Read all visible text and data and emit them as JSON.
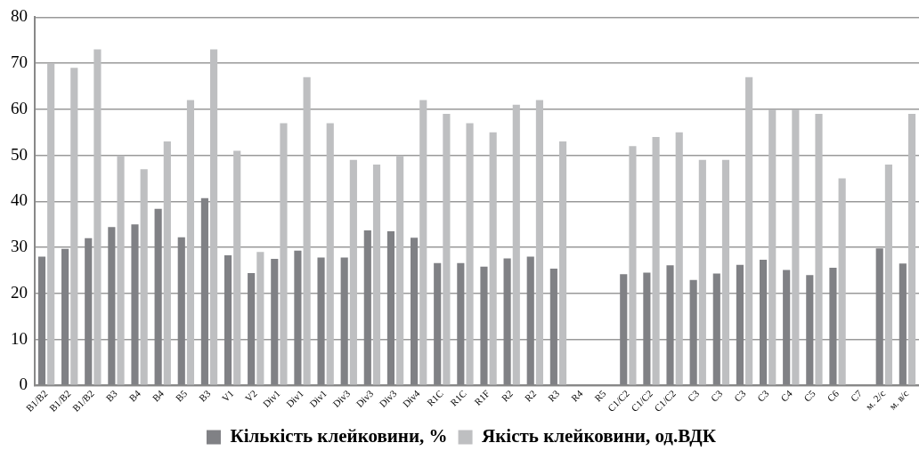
{
  "chart_data": {
    "type": "bar",
    "categories": [
      "B1/B2",
      "B1/B2",
      "B1/B2",
      "B3",
      "B4",
      "B4",
      "B5",
      "B3",
      "V1",
      "V2",
      "Div1",
      "Div1",
      "Div1",
      "Div3",
      "Div3",
      "Div3",
      "Div4",
      "R1C",
      "R1C",
      "R1F",
      "R2",
      "R2",
      "R3",
      "R4",
      "R5",
      "C1/C2",
      "C1/C2",
      "C1/C2",
      "C3",
      "C3",
      "C3",
      "C3",
      "C4",
      "C5",
      "C6",
      "C7",
      "м. 2/с",
      "м. в/с"
    ],
    "series": [
      {
        "name": "Кількість клейковини, %",
        "color": "#808185",
        "values": [
          28,
          29.7,
          32,
          34.4,
          35,
          38.4,
          32.2,
          40.7,
          28.3,
          24.4,
          27.5,
          29.3,
          27.8,
          27.8,
          33.7,
          33.5,
          32.1,
          26.6,
          26.6,
          25.8,
          27.6,
          28,
          25.4,
          null,
          null,
          24.2,
          24.5,
          26.1,
          22.9,
          24.3,
          26.2,
          27.3,
          25.1,
          24,
          25.6,
          null,
          29.8,
          26.5
        ]
      },
      {
        "name": "Якість клейковини, од.ВДК",
        "color": "#bebfc1",
        "values": [
          70,
          69,
          73,
          50,
          47,
          53,
          62,
          73,
          51,
          29,
          57,
          67,
          57,
          49,
          48,
          50,
          62,
          59,
          57,
          55,
          61,
          62,
          53,
          null,
          null,
          52,
          54,
          55,
          49,
          49,
          67,
          60,
          60,
          59,
          45,
          null,
          48,
          59
        ]
      }
    ],
    "ylim": [
      0,
      80
    ],
    "yticks": [
      0,
      10,
      20,
      30,
      40,
      50,
      60,
      70,
      80
    ],
    "grid": "y",
    "legend": "bottom"
  }
}
